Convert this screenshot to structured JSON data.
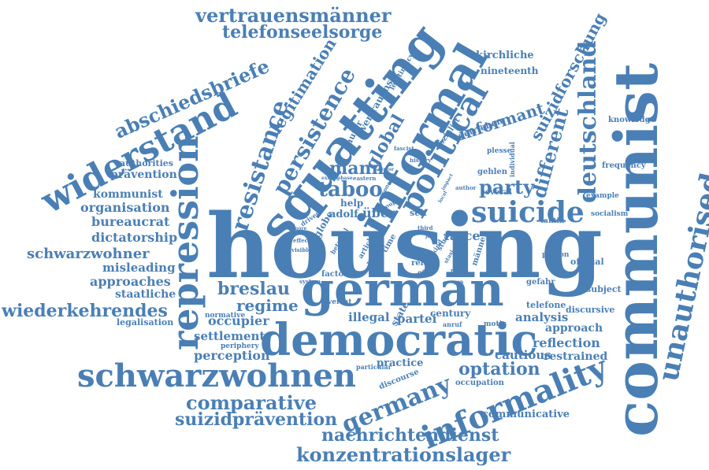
{
  "colors": {
    "word": "#4a7fb5",
    "background": "#ffffff"
  },
  "words": [
    "housing",
    "german",
    "democratic",
    "communist",
    "squatting",
    "informal",
    "repression",
    "unauthorised",
    "widerstand",
    "political",
    "schwarzwohnen",
    "informality",
    "resistance",
    "germany",
    "suicide",
    "persistence",
    "deutschland",
    "abschiedsbriefe",
    "vertrauensmänner",
    "telefonseelsorge",
    "global",
    "taboo",
    "party",
    "mann",
    "different",
    "informant",
    "suizidforschung",
    "legitimation",
    "breslau",
    "regime",
    "optation",
    "comparative",
    "suizidprävention",
    "nachrichtendienst",
    "konzentrationslager",
    "wiederkehrendes",
    "schwarzwohner",
    "kommunist",
    "organisation",
    "bureaucrat",
    "dictatorship",
    "misleading",
    "approaches",
    "staatliche",
    "authorities",
    "prävention",
    "legalisation",
    "occupier",
    "settlement",
    "perception",
    "normative",
    "periphery",
    "reflection",
    "restrained",
    "analysis",
    "approach",
    "discursive",
    "telefone",
    "communicative",
    "cautious",
    "practice",
    "discourse",
    "occupation",
    "illegal",
    "partei",
    "century",
    "farce",
    "über",
    "adolf",
    "help",
    "globe",
    "kirchliche",
    "nineteenth",
    "knowledge",
    "frequency",
    "example",
    "socialism",
    "official",
    "person",
    "gefahr",
    "subject",
    "taktik",
    "gehlen",
    "several",
    "plesse",
    "individual",
    "getrieben",
    "sauter",
    "vertrauens",
    "legitimacy",
    "fascist",
    "sozialist",
    "state",
    "effect",
    "visible",
    "factor",
    "system",
    "driven",
    "self",
    "männer",
    "reich",
    "time",
    "role",
    "ging",
    "verrat",
    "anruf",
    "motiv",
    "particular",
    "concept",
    "history",
    "author",
    "eastern",
    "group",
    "extent",
    "phase",
    "terror",
    "jahr",
    "rate",
    "study",
    "range",
    "article",
    "betrayal",
    "more",
    "third",
    "diese",
    "world",
    "open",
    "kind",
    "local",
    "stasi",
    "impact"
  ]
}
